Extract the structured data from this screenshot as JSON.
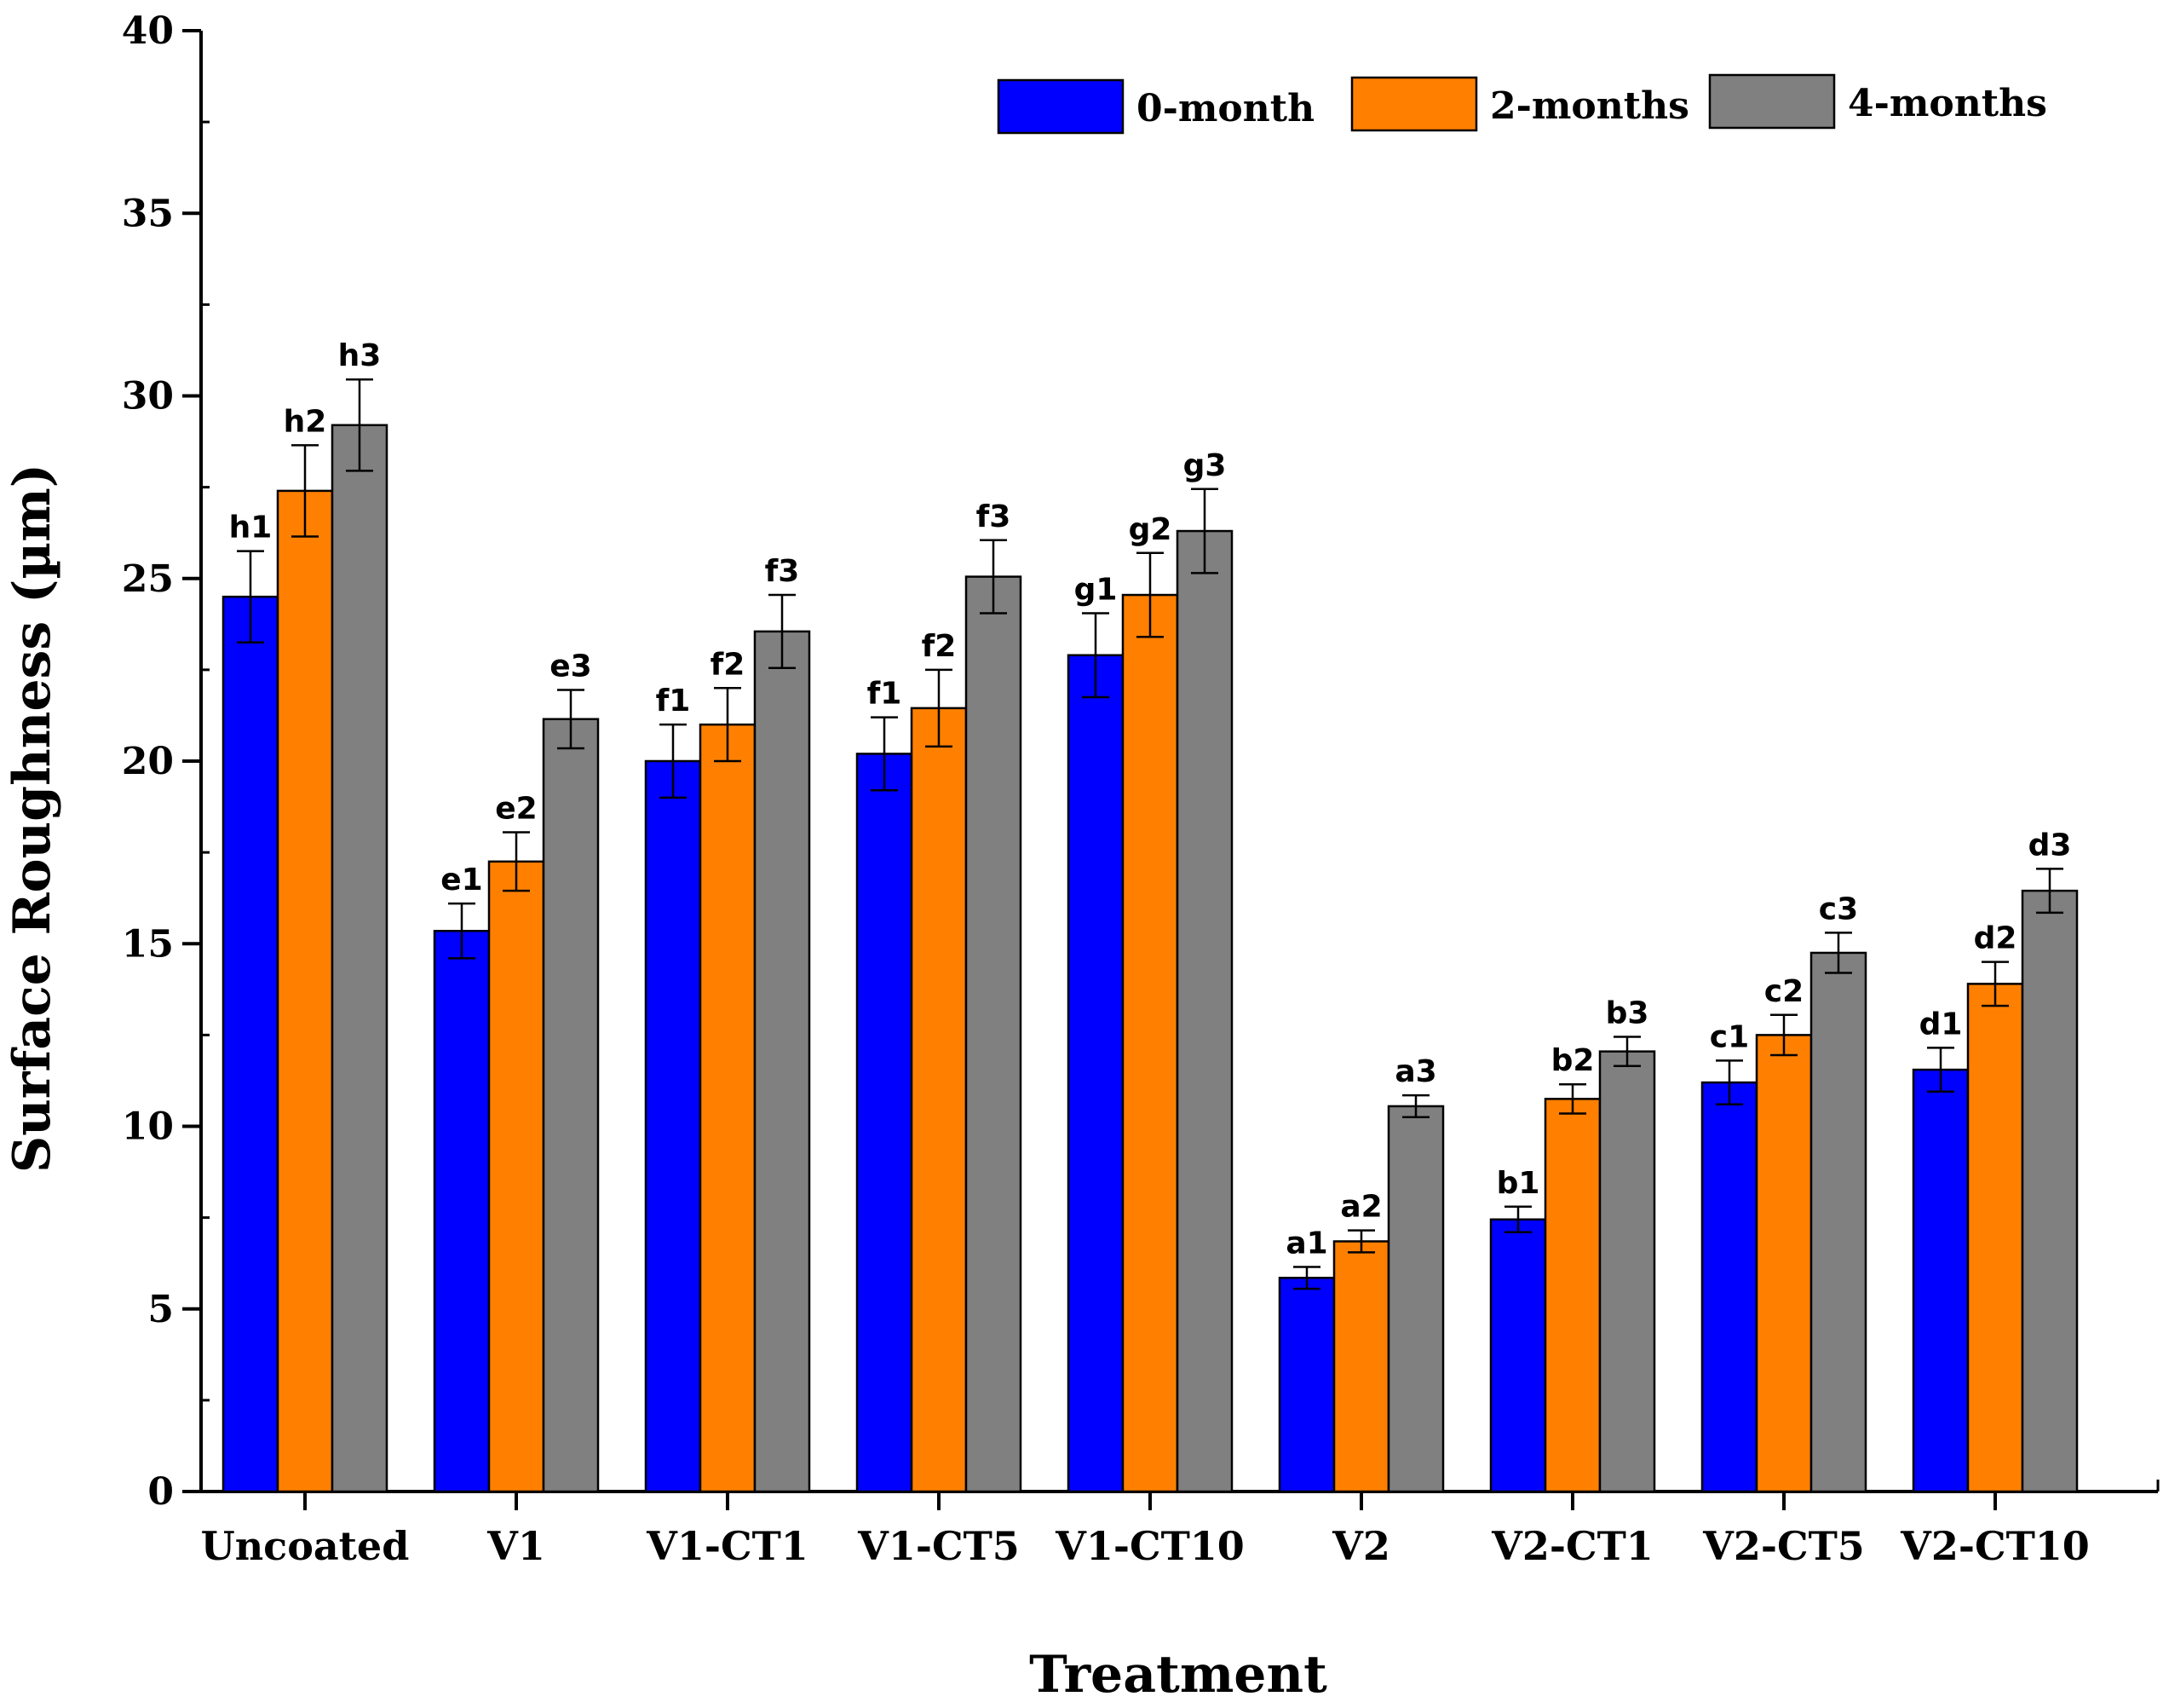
{
  "chart_data": {
    "type": "bar",
    "title": "",
    "xlabel": "Treatment",
    "ylabel": "Surface Roughness (µm)",
    "ylim": [
      0,
      40
    ],
    "yticks": [
      0,
      5,
      10,
      15,
      20,
      25,
      30,
      35,
      40
    ],
    "grid": false,
    "legend_position": "top-right",
    "categories": [
      "Uncoated",
      "V1",
      "V1-CT1",
      "V1-CT5",
      "V1-CT10",
      "V2",
      "V2-CT1",
      "V2-CT5",
      "V2-CT10"
    ],
    "series": [
      {
        "name": "0-month",
        "color": "#0000ff",
        "values": [
          24.5,
          15.35,
          20.0,
          20.2,
          22.9,
          5.85,
          7.45,
          11.2,
          11.55
        ],
        "errors": [
          1.25,
          0.75,
          1.0,
          1.0,
          1.15,
          0.3,
          0.35,
          0.6,
          0.6
        ],
        "labels": [
          "h1",
          "e1",
          "f1",
          "f1",
          "g1",
          "a1",
          "b1",
          "c1",
          "d1"
        ]
      },
      {
        "name": "2-months",
        "color": "#ff8000",
        "values": [
          27.4,
          17.25,
          21.0,
          21.45,
          24.55,
          6.85,
          10.75,
          12.5,
          13.9
        ],
        "errors": [
          1.25,
          0.8,
          1.0,
          1.05,
          1.15,
          0.3,
          0.4,
          0.55,
          0.6
        ],
        "labels": [
          "h2",
          "e2",
          "f2",
          "f2",
          "g2",
          "a2",
          "b2",
          "c2",
          "d2"
        ]
      },
      {
        "name": "4-months",
        "color": "#808080",
        "values": [
          29.2,
          21.15,
          23.55,
          25.05,
          26.3,
          10.55,
          12.05,
          14.75,
          16.45
        ],
        "errors": [
          1.25,
          0.8,
          1.0,
          1.0,
          1.15,
          0.3,
          0.4,
          0.55,
          0.6
        ],
        "labels": [
          "h3",
          "e3",
          "f3",
          "f3",
          "g3",
          "a3",
          "b3",
          "c3",
          "d3"
        ]
      }
    ]
  }
}
